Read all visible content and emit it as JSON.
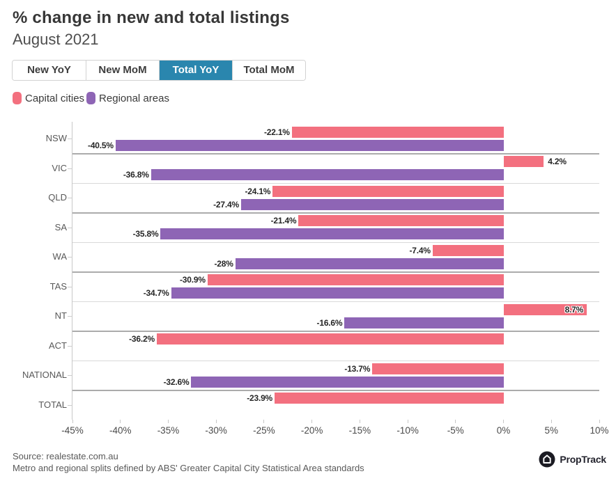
{
  "header": {
    "title": "% change in new and total listings",
    "subtitle": "August 2021"
  },
  "tabs": [
    {
      "label": "New YoY",
      "active": false
    },
    {
      "label": "New MoM",
      "active": false
    },
    {
      "label": "Total YoY",
      "active": true
    },
    {
      "label": "Total MoM",
      "active": false
    }
  ],
  "legend": [
    {
      "label": "Capital cities",
      "color": "#F3707F"
    },
    {
      "label": "Regional areas",
      "color": "#8E65B5"
    }
  ],
  "chart_data": {
    "type": "bar",
    "orientation": "horizontal",
    "title": "% change in new and total listings",
    "subtitle": "August 2021",
    "categories": [
      "NSW",
      "VIC",
      "QLD",
      "SA",
      "WA",
      "TAS",
      "NT",
      "ACT",
      "NATIONAL",
      "TOTAL"
    ],
    "series": [
      {
        "name": "Capital cities",
        "color": "#F3707F",
        "values": [
          -22.1,
          4.2,
          -24.1,
          -21.4,
          -7.4,
          -30.9,
          8.7,
          -36.2,
          -13.7,
          -23.9
        ],
        "labels": [
          "-22.1%",
          "4.2%",
          "-24.1%",
          "-21.4%",
          "-7.4%",
          "-30.9%",
          "8.7%",
          "-36.2%",
          "-13.7%",
          "-23.9%"
        ]
      },
      {
        "name": "Regional areas",
        "color": "#8E65B5",
        "values": [
          -40.5,
          -36.8,
          -27.4,
          -35.8,
          -28,
          -34.7,
          -16.6,
          null,
          -32.6,
          null
        ],
        "labels": [
          "-40.5%",
          "-36.8%",
          "-27.4%",
          "-35.8%",
          "-28%",
          "-34.7%",
          "-16.6%",
          null,
          "-32.6%",
          null
        ]
      }
    ],
    "xlim": [
      -45,
      10
    ],
    "xticks": [
      "-45%",
      "-40%",
      "-35%",
      "-30%",
      "-25%",
      "-20%",
      "-15%",
      "-10%",
      "-5%",
      "0%",
      "5%",
      "10%"
    ],
    "grid": false,
    "legend_position": "top-left"
  },
  "footer": {
    "source": "Source: realestate.com.au",
    "note": "Metro and regional splits defined by ABS' Greater Capital City Statistical Area standards",
    "logo_text": "PropTrack"
  }
}
